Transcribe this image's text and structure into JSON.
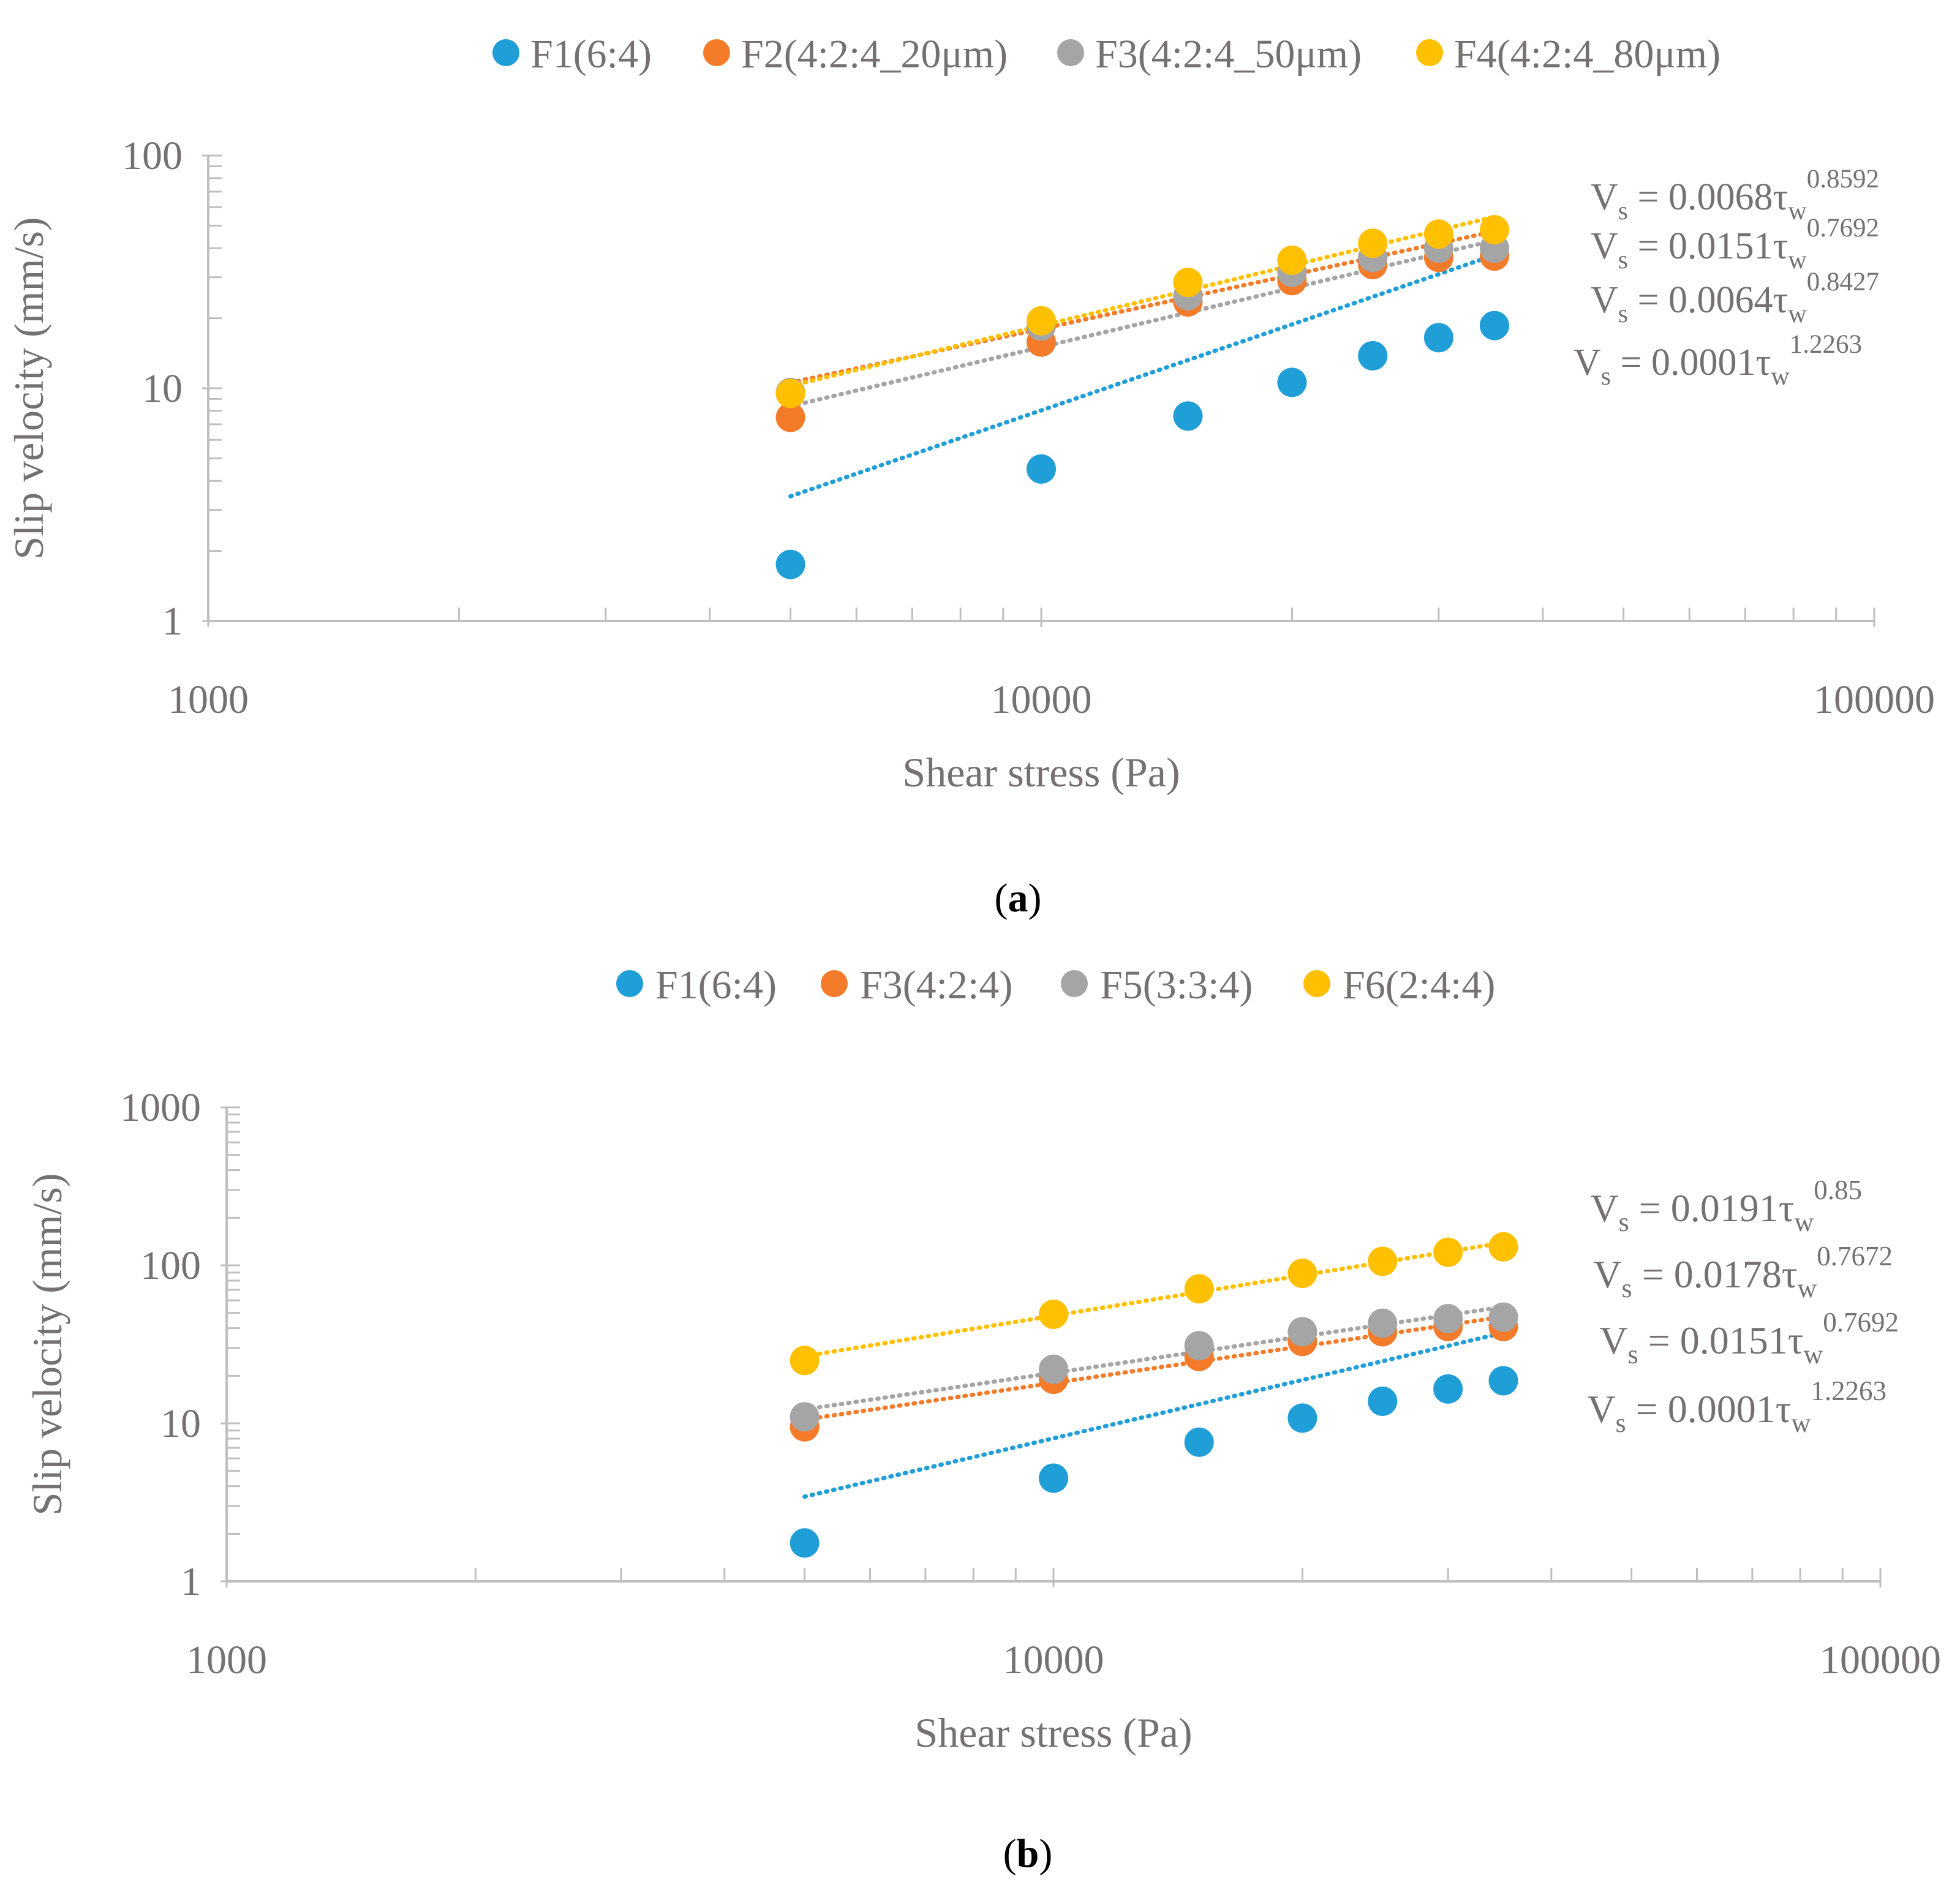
{
  "figure": {
    "panels": [
      {
        "id": "a",
        "caption_open": "(",
        "caption_letter": "a",
        "caption_close": ")",
        "legend": [
          {
            "label": "F1(6:4)",
            "color": "#1F9ED8"
          },
          {
            "label": "F2(4:2:4_20μm)",
            "color": "#F47B2A"
          },
          {
            "label": "F3(4:2:4_50μm)",
            "color": "#A5A5A5"
          },
          {
            "label": "F4(4:2:4_80μm)",
            "color": "#FFC000"
          }
        ],
        "equations": [
          {
            "prefix": "V",
            "sub1": "s",
            "mid": " = 0.0068τ",
            "sub2": "w",
            "exp": "0.8592"
          },
          {
            "prefix": "V",
            "sub1": "s",
            "mid": " = 0.0151τ",
            "sub2": "w",
            "exp": "0.7692"
          },
          {
            "prefix": "V",
            "sub1": "s",
            "mid": " = 0.0064τ",
            "sub2": "w",
            "exp": "0.8427"
          },
          {
            "prefix": "V",
            "sub1": "s",
            "mid": " = 0.0001τ",
            "sub2": "w",
            "exp": "1.2263"
          }
        ]
      },
      {
        "id": "b",
        "caption_open": "(",
        "caption_letter": "b",
        "caption_close": ")",
        "legend": [
          {
            "label": "F1(6:4)",
            "color": "#1F9ED8"
          },
          {
            "label": "F3(4:2:4)",
            "color": "#F47B2A"
          },
          {
            "label": "F5(3:3:4)",
            "color": "#A5A5A5"
          },
          {
            "label": "F6(2:4:4)",
            "color": "#FFC000"
          }
        ],
        "equations": [
          {
            "prefix": "V",
            "sub1": "s",
            "mid": " = 0.0191τ",
            "sub2": "w",
            "exp": "0.85"
          },
          {
            "prefix": "V",
            "sub1": "s",
            "mid": " = 0.0178τ",
            "sub2": "w",
            "exp": "0.7672"
          },
          {
            "prefix": "V",
            "sub1": "s",
            "mid": " = 0.0151τ",
            "sub2": "w",
            "exp": "0.7692"
          },
          {
            "prefix": "V",
            "sub1": "s",
            "mid": " = 0.0001τ",
            "sub2": "w",
            "exp": "1.2263"
          }
        ]
      }
    ]
  },
  "chart_data": [
    {
      "type": "scatter",
      "title": "",
      "xlabel": "Shear stress (Pa)",
      "ylabel": "Slip velocity (mm/s)",
      "xscale": "log",
      "yscale": "log",
      "xlim": [
        1000,
        100000
      ],
      "ylim": [
        1,
        100
      ],
      "xticks": [
        "1000",
        "10000",
        "100000"
      ],
      "yticks": [
        "1",
        "10",
        "100"
      ],
      "legend_position": "top",
      "trendline": "power",
      "x": [
        5000,
        10000,
        15000,
        20000,
        25000,
        30000,
        35000
      ],
      "series": [
        {
          "name": "F1(6:4)",
          "color": "#1F9ED8",
          "values": [
            1.75,
            4.5,
            7.6,
            10.6,
            13.8,
            16.5,
            18.6
          ]
        },
        {
          "name": "F2(4:2:4_20μm)",
          "color": "#F47B2A",
          "values": [
            7.5,
            15.8,
            23.5,
            29,
            34,
            36.5,
            37
          ]
        },
        {
          "name": "F3(4:2:4_50μm)",
          "color": "#A5A5A5",
          "values": [
            9.6,
            18.5,
            25,
            31.5,
            36.5,
            40,
            40
          ]
        },
        {
          "name": "F4(4:2:4_80μm)",
          "color": "#FFC000",
          "values": [
            9.5,
            19.5,
            28.5,
            35.5,
            42,
            46,
            48
          ]
        }
      ],
      "trendlines": [
        {
          "series": "F1(6:4)",
          "coef": 0.0001,
          "exp": 1.2263
        },
        {
          "series": "F2(4:2:4_20μm)",
          "coef": 0.0151,
          "exp": 0.7692
        },
        {
          "series": "F3(4:2:4_50μm)",
          "coef": 0.0064,
          "exp": 0.8427
        },
        {
          "series": "F4(4:2:4_80μm)",
          "coef": 0.0068,
          "exp": 0.8592
        }
      ]
    },
    {
      "type": "scatter",
      "title": "",
      "xlabel": "Shear stress (Pa)",
      "ylabel": "Slip velocity (mm/s)",
      "xscale": "log",
      "yscale": "log",
      "xlim": [
        1000,
        100000
      ],
      "ylim": [
        1,
        1000
      ],
      "xticks": [
        "1000",
        "10000",
        "100000"
      ],
      "yticks": [
        "1",
        "10",
        "100",
        "1000"
      ],
      "legend_position": "top",
      "trendline": "power",
      "x": [
        5000,
        10000,
        15000,
        20000,
        25000,
        30000,
        35000
      ],
      "series": [
        {
          "name": "F1(6:4)",
          "color": "#1F9ED8",
          "values": [
            1.75,
            4.5,
            7.6,
            10.8,
            13.8,
            16.5,
            18.6
          ]
        },
        {
          "name": "F3(4:2:4)",
          "color": "#F47B2A",
          "values": [
            9.5,
            19,
            26.5,
            33,
            38,
            41,
            41
          ]
        },
        {
          "name": "F5(3:3:4)",
          "color": "#A5A5A5",
          "values": [
            11,
            22,
            31,
            38,
            43,
            46,
            47
          ]
        },
        {
          "name": "F6(2:4:4)",
          "color": "#FFC000",
          "values": [
            25,
            49,
            71,
            89,
            106,
            121,
            131
          ]
        }
      ],
      "trendlines": [
        {
          "series": "F1(6:4)",
          "coef": 0.0001,
          "exp": 1.2263
        },
        {
          "series": "F3(4:2:4)",
          "coef": 0.0151,
          "exp": 0.7692
        },
        {
          "series": "F5(3:3:4)",
          "coef": 0.0178,
          "exp": 0.7672
        },
        {
          "series": "F6(2:4:4)",
          "coef": 0.0191,
          "exp": 0.85
        }
      ]
    }
  ]
}
